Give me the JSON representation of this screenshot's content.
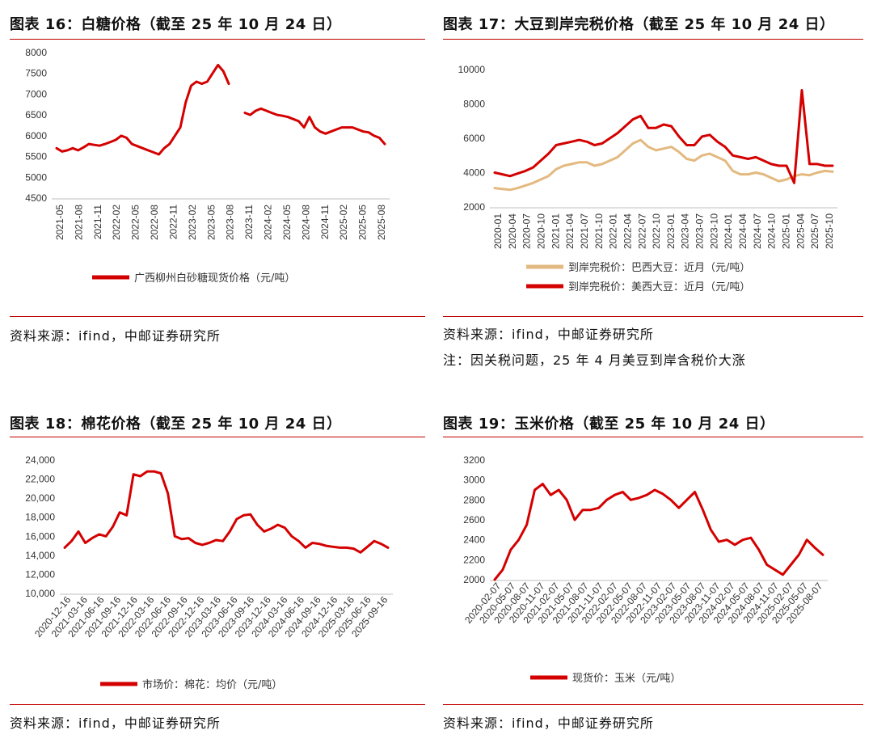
{
  "panels": [
    {
      "title": "图表 16：白糖价格（截至 25 年 10 月 24 日）",
      "source": "资料来源：ifind，中邮证券研究所",
      "note": "",
      "chart_data": {
        "type": "line",
        "ylim": [
          4500,
          8000
        ],
        "yticks": [
          "4500",
          "5000",
          "5500",
          "6000",
          "6500",
          "7000",
          "7500",
          "8000"
        ],
        "x_ticks": [
          "2021-05",
          "2021-08",
          "2021-11",
          "2022-02",
          "2022-05",
          "2022-08",
          "2022-11",
          "2023-02",
          "2023-05",
          "2023-08",
          "2023-11",
          "2024-02",
          "2024-05",
          "2024-08",
          "2024-11",
          "2025-02",
          "2025-05",
          "2025-08"
        ],
        "series": [
          {
            "name": "广西柳州白砂糖现货价格（元/吨）",
            "color": "#d40000",
            "values": [
              5700,
              5620,
              5650,
              5700,
              5650,
              5720,
              5800,
              5780,
              5760,
              5800,
              5850,
              5900,
              6000,
              5950,
              5800,
              5750,
              5700,
              5650,
              5600,
              5550,
              5700,
              5800,
              6000,
              6200,
              6800,
              7200,
              7300,
              7250,
              7300,
              7500,
              7700,
              7550,
              7250,
              null,
              null,
              6550,
              6500,
              6600,
              6650,
              6600,
              6550,
              6500,
              6480,
              6450,
              6400,
              6350,
              6200,
              6450,
              6200,
              6100,
              6050,
              6100,
              6150,
              6200,
              6200,
              6200,
              6150,
              6100,
              6080,
              6000,
              5950,
              5800
            ]
          }
        ]
      }
    },
    {
      "title": "图表 17：大豆到岸完税价格（截至 25 年 10 月 24 日）",
      "source": "资料来源：ifind，中邮证券研究所",
      "note": "注：因关税问题，25 年 4 月美豆到岸含税价大涨",
      "chart_data": {
        "type": "line",
        "ylim": [
          2000,
          10000
        ],
        "yticks": [
          "2000",
          "4000",
          "6000",
          "8000",
          "10000"
        ],
        "x_ticks": [
          "2020-01",
          "2020-04",
          "2020-07",
          "2020-10",
          "2021-01",
          "2021-04",
          "2021-07",
          "2021-10",
          "2022-01",
          "2022-04",
          "2022-07",
          "2022-10",
          "2023-01",
          "2023-04",
          "2023-07",
          "2023-10",
          "2024-01",
          "2024-04",
          "2024-07",
          "2024-10",
          "2025-01",
          "2025-04",
          "2025-07",
          "2025-10"
        ],
        "series": [
          {
            "name": "到岸完税价：巴西大豆：近月（元/吨）",
            "color": "#e3b97f",
            "values": [
              3100,
              3050,
              3000,
              3100,
              3250,
              3400,
              3600,
              3800,
              4200,
              4400,
              4500,
              4600,
              4600,
              4400,
              4500,
              4700,
              4900,
              5300,
              5700,
              5900,
              5500,
              5300,
              5400,
              5500,
              5200,
              4800,
              4700,
              5000,
              5100,
              4900,
              4700,
              4100,
              3900,
              3900,
              4000,
              3900,
              3700,
              3500,
              3600,
              3800,
              3900,
              3850,
              4000,
              4100,
              4050
            ]
          },
          {
            "name": "到岸完税价：美西大豆：近月（元/吨）",
            "color": "#d40000",
            "values": [
              4000,
              3900,
              3800,
              3950,
              4100,
              4300,
              4700,
              5100,
              5600,
              5700,
              5800,
              5900,
              5800,
              5600,
              5700,
              6000,
              6300,
              6700,
              7100,
              7300,
              6600,
              6600,
              6800,
              6700,
              6100,
              5600,
              5600,
              6100,
              6200,
              5800,
              5500,
              5000,
              4900,
              4800,
              4900,
              4700,
              4500,
              4400,
              4400,
              3400,
              8800,
              4500,
              4500,
              4400,
              4400
            ]
          }
        ]
      }
    },
    {
      "title": "图表 18：棉花价格（截至 25 年 10 月 24 日）",
      "source": "资料来源：ifind，中邮证券研究所",
      "note": "",
      "chart_data": {
        "type": "line",
        "ylim": [
          10000,
          24000
        ],
        "yticks": [
          "10,000",
          "12,000",
          "14,000",
          "16,000",
          "18,000",
          "20,000",
          "22,000",
          "24,000"
        ],
        "x_ticks": [
          "2020-12-16",
          "2021-03-16",
          "2021-06-16",
          "2021-09-16",
          "2021-12-16",
          "2022-03-16",
          "2022-06-16",
          "2022-09-16",
          "2022-12-16",
          "2023-03-16",
          "2023-06-16",
          "2023-09-16",
          "2023-12-16",
          "2024-03-16",
          "2024-06-16",
          "2024-09-16",
          "2024-12-16",
          "2025-03-16",
          "2025-06-16",
          "2025-09-16"
        ],
        "series": [
          {
            "name": "市场价：棉花：均价（元/吨）",
            "color": "#d40000",
            "values": [
              14800,
              15500,
              16500,
              15300,
              15800,
              16200,
              16000,
              17000,
              18500,
              18200,
              22500,
              22300,
              22800,
              22800,
              22600,
              20500,
              16000,
              15700,
              15800,
              15300,
              15100,
              15300,
              15600,
              15500,
              16500,
              17800,
              18200,
              18300,
              17200,
              16500,
              16800,
              17200,
              16900,
              16000,
              15500,
              14800,
              15300,
              15200,
              15000,
              14900,
              14800,
              14800,
              14700,
              14300,
              14900,
              15500,
              15200,
              14800
            ]
          }
        ]
      }
    },
    {
      "title": "图表 19：玉米价格（截至 25 年 10 月 24 日）",
      "source": "资料来源：ifind，中邮证券研究所",
      "note": "",
      "chart_data": {
        "type": "line",
        "ylim": [
          2000,
          3200
        ],
        "yticks": [
          "2000",
          "2200",
          "2400",
          "2600",
          "2800",
          "3000",
          "3200"
        ],
        "x_ticks": [
          "2020-02-07",
          "2020-05-07",
          "2020-08-07",
          "2020-11-07",
          "2021-02-07",
          "2021-05-07",
          "2021-08-07",
          "2021-11-07",
          "2022-02-07",
          "2022-05-07",
          "2022-08-07",
          "2022-11-07",
          "2023-02-07",
          "2023-05-07",
          "2023-08-07",
          "2023-11-07",
          "2024-02-07",
          "2024-05-07",
          "2024-08-07",
          "2024-11-07",
          "2025-02-07",
          "2025-05-07",
          "2025-08-07"
        ],
        "series": [
          {
            "name": "现货价：玉米（元/吨）",
            "color": "#d40000",
            "values": [
              2000,
              2100,
              2300,
              2400,
              2550,
              2900,
              2960,
              2850,
              2900,
              2800,
              2600,
              2700,
              2700,
              2720,
              2800,
              2850,
              2880,
              2800,
              2820,
              2850,
              2900,
              2860,
              2800,
              2720,
              2800,
              2880,
              2700,
              2500,
              2380,
              2400,
              2350,
              2400,
              2420,
              2300,
              2150,
              2100,
              2050,
              2150,
              2250,
              2400,
              2320,
              2250
            ]
          }
        ]
      }
    }
  ]
}
